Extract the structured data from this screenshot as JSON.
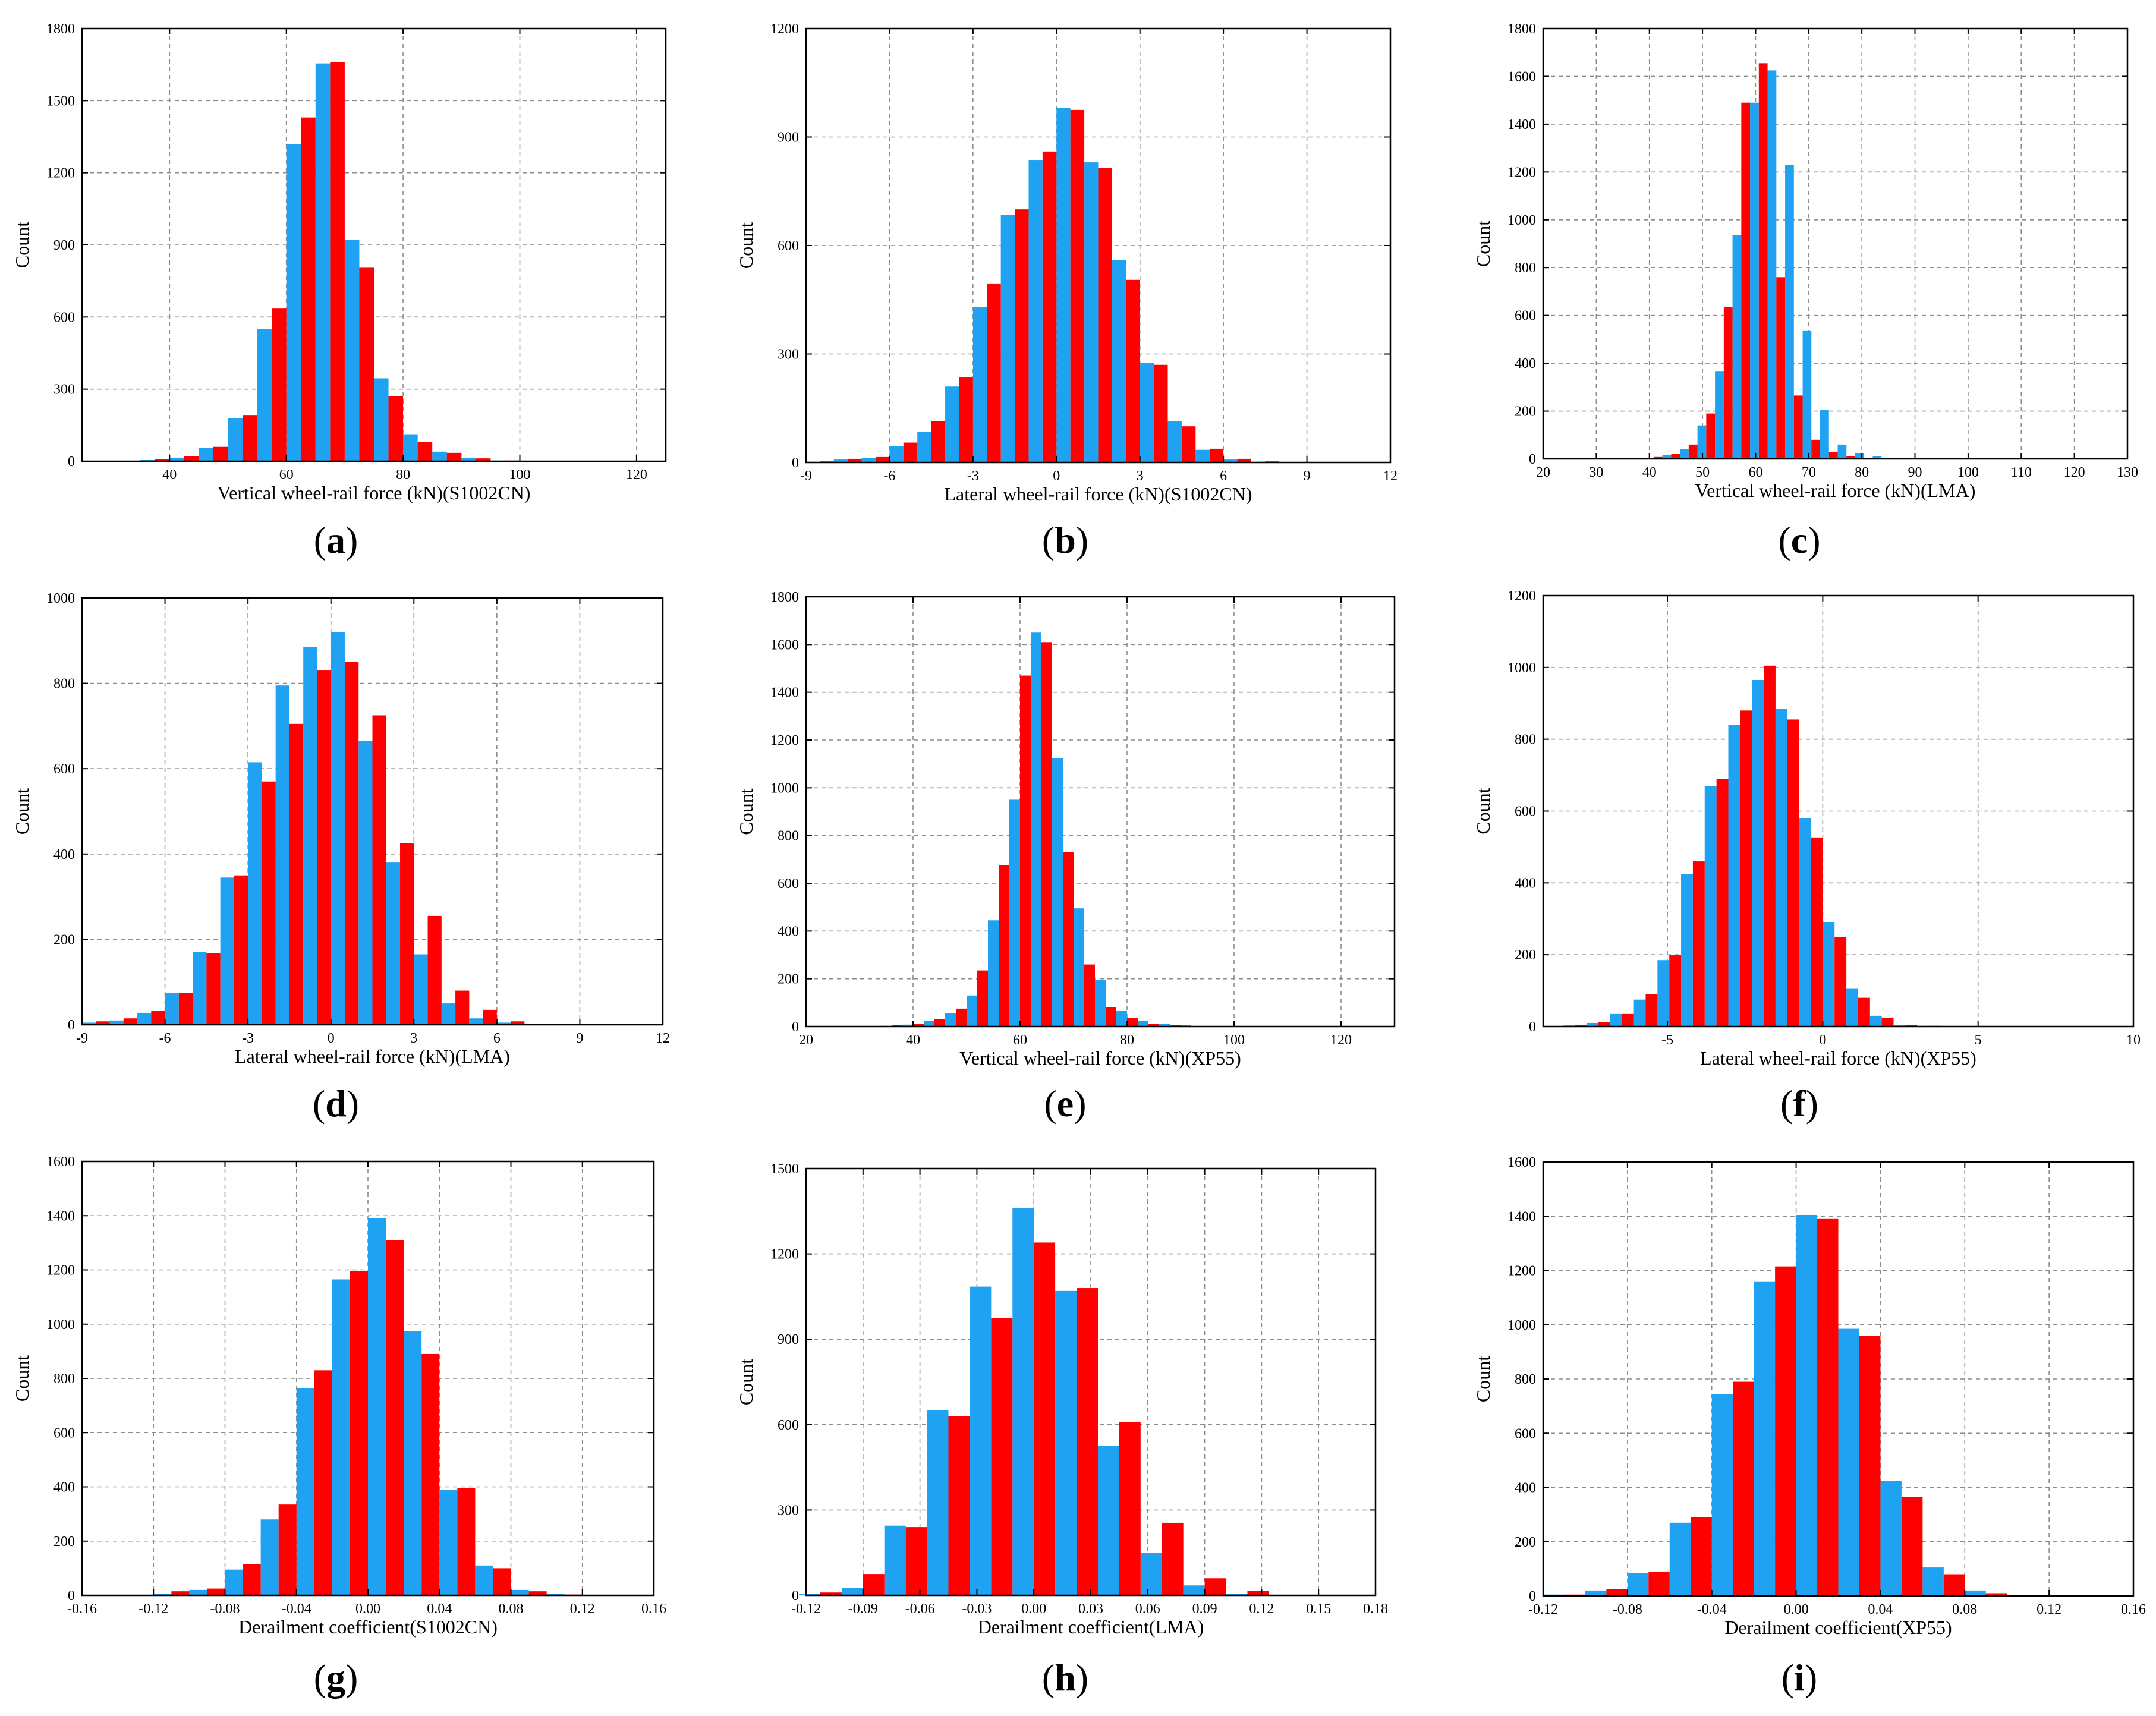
{
  "colors": {
    "series_a": "#1fa2f2",
    "series_b": "#ff0000"
  },
  "chart_data": [
    {
      "id": "a",
      "panel_label": "a",
      "type": "bar",
      "xlabel": "Vertical wheel-rail force (kN)(S1002CN)",
      "ylabel": "Count",
      "xlim": [
        25,
        125
      ],
      "ylim": [
        0,
        1800
      ],
      "xticks": [
        40,
        60,
        80,
        100,
        120
      ],
      "yticks": [
        0,
        300,
        600,
        900,
        1200,
        1500,
        1800
      ],
      "x_grid": [
        40,
        60,
        80,
        100,
        120
      ],
      "bin_width": 5,
      "bin_centers": [
        32.5,
        37.5,
        42.5,
        47.5,
        52.5,
        57.5,
        62.5,
        67.5,
        72.5,
        77.5,
        82.5,
        87.5,
        92.5,
        97.5,
        102.5
      ],
      "series": [
        {
          "name": "series_a",
          "values": [
            2,
            5,
            15,
            55,
            180,
            550,
            1320,
            1655,
            920,
            345,
            110,
            40,
            15,
            3,
            1
          ]
        },
        {
          "name": "series_b",
          "values": [
            2,
            8,
            20,
            60,
            190,
            635,
            1430,
            1660,
            805,
            270,
            80,
            35,
            12,
            3,
            1
          ]
        }
      ]
    },
    {
      "id": "b",
      "panel_label": "b",
      "type": "bar",
      "xlabel": "Lateral wheel-rail force (kN)(S1002CN)",
      "ylabel": "Count",
      "xlim": [
        -9,
        12
      ],
      "ylim": [
        0,
        1200
      ],
      "xticks": [
        -9,
        -6,
        -3,
        0,
        3,
        6,
        9,
        12
      ],
      "yticks": [
        0,
        300,
        600,
        900,
        1200
      ],
      "x_grid": [
        -6,
        -3,
        0,
        3,
        6,
        9
      ],
      "bin_width": 1,
      "bin_centers": [
        -8.5,
        -7.5,
        -6.5,
        -5.5,
        -4.5,
        -3.5,
        -2.5,
        -1.5,
        -0.5,
        0.5,
        1.5,
        2.5,
        3.5,
        4.5,
        5.5,
        6.5,
        7.5,
        8.5,
        9.5
      ],
      "series": [
        {
          "name": "series_a",
          "values": [
            2,
            8,
            12,
            45,
            85,
            210,
            430,
            685,
            835,
            980,
            830,
            560,
            275,
            115,
            35,
            8,
            2,
            1,
            1
          ]
        },
        {
          "name": "series_b",
          "values": [
            3,
            10,
            15,
            55,
            115,
            235,
            495,
            700,
            860,
            975,
            815,
            505,
            270,
            100,
            38,
            10,
            3,
            1,
            0
          ]
        }
      ]
    },
    {
      "id": "c",
      "panel_label": "c",
      "type": "bar",
      "xlabel": "Vertical wheel-rail force (kN)(LMA)",
      "ylabel": "Count",
      "xlim": [
        20,
        130
      ],
      "ylim": [
        0,
        1800
      ],
      "xticks": [
        20,
        30,
        40,
        50,
        60,
        70,
        80,
        90,
        100,
        110,
        120,
        130
      ],
      "yticks": [
        0,
        200,
        400,
        600,
        800,
        1000,
        1200,
        1400,
        1600,
        1800
      ],
      "x_grid": [
        30,
        40,
        50,
        60,
        70,
        80,
        90,
        100,
        110,
        120
      ],
      "bin_width": 3.3,
      "bin_centers": [
        37.5,
        40.8,
        44.1,
        47.4,
        50.7,
        54.0,
        57.3,
        60.6,
        63.9,
        67.2,
        70.5,
        73.8,
        77.1,
        80.4,
        83.7,
        87.0,
        90.3,
        93.6,
        96.9,
        100.2
      ],
      "series": [
        {
          "name": "series_a",
          "values": [
            2,
            5,
            15,
            40,
            140,
            365,
            935,
            1490,
            1625,
            1230,
            535,
            205,
            60,
            25,
            10,
            5,
            2,
            1,
            1,
            0
          ]
        },
        {
          "name": "series_b",
          "values": [
            3,
            8,
            20,
            60,
            190,
            635,
            1490,
            1655,
            760,
            265,
            80,
            30,
            12,
            5,
            2,
            1,
            1,
            0,
            0,
            0
          ]
        }
      ]
    },
    {
      "id": "d",
      "panel_label": "d",
      "type": "bar",
      "xlabel": "Lateral wheel-rail force (kN)(LMA)",
      "ylabel": "Count",
      "xlim": [
        -9,
        12
      ],
      "ylim": [
        0,
        1000
      ],
      "xticks": [
        -9,
        -6,
        -3,
        0,
        3,
        6,
        9,
        12
      ],
      "yticks": [
        0,
        200,
        400,
        600,
        800,
        1000
      ],
      "x_grid": [
        -6,
        -3,
        0,
        3,
        6,
        9
      ],
      "bin_width": 1,
      "bin_centers": [
        -8.5,
        -7.5,
        -6.5,
        -5.5,
        -4.5,
        -3.5,
        -2.5,
        -1.5,
        -0.5,
        0.5,
        1.5,
        2.5,
        3.5,
        4.5,
        5.5,
        6.5,
        7.5,
        8.5,
        9.5
      ],
      "series": [
        {
          "name": "series_a",
          "values": [
            5,
            10,
            28,
            75,
            170,
            345,
            615,
            795,
            885,
            920,
            665,
            380,
            165,
            50,
            15,
            5,
            2,
            1,
            0
          ]
        },
        {
          "name": "series_b",
          "values": [
            8,
            15,
            32,
            75,
            168,
            350,
            570,
            705,
            830,
            850,
            725,
            425,
            255,
            80,
            35,
            8,
            2,
            1,
            0
          ]
        }
      ]
    },
    {
      "id": "e",
      "panel_label": "e",
      "type": "bar",
      "xlabel": "Vertical wheel-rail force (kN)(XP55)",
      "ylabel": "Count",
      "xlim": [
        20,
        130
      ],
      "ylim": [
        0,
        1800
      ],
      "xticks": [
        20,
        40,
        60,
        80,
        100,
        120
      ],
      "yticks": [
        0,
        200,
        400,
        600,
        800,
        1000,
        1200,
        1400,
        1600,
        1800
      ],
      "x_grid": [
        40,
        60,
        80,
        100,
        120
      ],
      "bin_width": 4,
      "bin_centers": [
        36,
        40,
        44,
        48,
        52,
        56,
        60,
        64,
        68,
        72,
        76,
        80,
        84,
        88,
        92,
        96,
        100,
        104
      ],
      "series": [
        {
          "name": "series_a",
          "values": [
            3,
            8,
            25,
            55,
            130,
            445,
            950,
            1650,
            1125,
            495,
            195,
            65,
            25,
            10,
            5,
            2,
            1,
            0
          ]
        },
        {
          "name": "series_b",
          "values": [
            5,
            12,
            30,
            75,
            235,
            675,
            1470,
            1610,
            730,
            260,
            80,
            35,
            12,
            5,
            2,
            1,
            0,
            0
          ]
        }
      ]
    },
    {
      "id": "f",
      "panel_label": "f",
      "type": "bar",
      "xlabel": "Lateral wheel-rail force (kN)(XP55)",
      "ylabel": "Count",
      "xlim": [
        -9,
        10
      ],
      "ylim": [
        0,
        1200
      ],
      "xticks": [
        -5,
        0,
        5,
        10
      ],
      "yticks": [
        0,
        200,
        400,
        600,
        800,
        1000,
        1200
      ],
      "x_grid": [
        -5,
        0,
        5
      ],
      "bin_width": 0.76,
      "bin_centers": [
        -7.98,
        -7.22,
        -6.46,
        -5.7,
        -4.94,
        -4.18,
        -3.42,
        -2.66,
        -1.9,
        -1.14,
        -0.38,
        0.38,
        1.14,
        1.9,
        2.66,
        3.42,
        4.18,
        4.94,
        5.7,
        6.46
      ],
      "series": [
        {
          "name": "series_a",
          "values": [
            3,
            10,
            35,
            75,
            185,
            425,
            670,
            840,
            965,
            885,
            580,
            290,
            105,
            30,
            5,
            2,
            1,
            0,
            0,
            0
          ]
        },
        {
          "name": "series_b",
          "values": [
            5,
            12,
            35,
            90,
            200,
            460,
            690,
            880,
            1005,
            855,
            525,
            250,
            80,
            25,
            5,
            2,
            1,
            0,
            0,
            0
          ]
        }
      ]
    },
    {
      "id": "g",
      "panel_label": "g",
      "type": "bar",
      "xlabel": "Derailment coefficient(S1002CN)",
      "ylabel": "Count",
      "xlim": [
        -0.16,
        0.16
      ],
      "ylim": [
        0,
        1600
      ],
      "xticks": [
        -0.16,
        -0.12,
        -0.08,
        -0.04,
        0.0,
        0.04,
        0.08,
        0.12,
        0.16
      ],
      "yticks": [
        0,
        200,
        400,
        600,
        800,
        1000,
        1200,
        1400,
        1600
      ],
      "xtick_labels": [
        "-0.16",
        "-0.12",
        "-0.08",
        "-0.04",
        "0.00",
        "0.04",
        "0.08",
        "0.12",
        "0.16"
      ],
      "x_grid": [
        -0.12,
        -0.08,
        -0.04,
        0.0,
        0.04,
        0.08,
        0.12
      ],
      "bin_width": 0.02,
      "bin_centers": [
        -0.11,
        -0.09,
        -0.07,
        -0.05,
        -0.03,
        -0.01,
        0.01,
        0.03,
        0.05,
        0.07,
        0.09,
        0.11
      ],
      "series": [
        {
          "name": "series_a",
          "values": [
            5,
            20,
            95,
            280,
            765,
            1165,
            1390,
            975,
            390,
            110,
            20,
            5
          ]
        },
        {
          "name": "series_b",
          "values": [
            15,
            25,
            115,
            335,
            830,
            1195,
            1310,
            890,
            395,
            100,
            15,
            3
          ]
        }
      ]
    },
    {
      "id": "h",
      "panel_label": "h",
      "type": "bar",
      "xlabel": "Derailment coefficient(LMA)",
      "ylabel": "Count",
      "xlim": [
        -0.12,
        0.18
      ],
      "ylim": [
        0,
        1500
      ],
      "xticks": [
        -0.12,
        -0.09,
        -0.06,
        -0.03,
        0.0,
        0.03,
        0.06,
        0.09,
        0.12,
        0.15,
        0.18
      ],
      "yticks": [
        0,
        300,
        600,
        900,
        1200,
        1500
      ],
      "xtick_labels": [
        "-0.12",
        "-0.09",
        "-0.06",
        "-0.03",
        "0.00",
        "0.03",
        "0.06",
        "0.09",
        "0.12",
        "0.15",
        "0.18"
      ],
      "x_grid": [
        -0.09,
        -0.06,
        -0.03,
        0.0,
        0.03,
        0.06,
        0.09,
        0.12,
        0.15
      ],
      "bin_width": 0.0225,
      "bin_centers": [
        -0.1125,
        -0.09,
        -0.0675,
        -0.045,
        -0.0225,
        0.0,
        0.0225,
        0.045,
        0.0675,
        0.09,
        0.1125
      ],
      "series": [
        {
          "name": "series_a",
          "values": [
            5,
            25,
            245,
            650,
            1085,
            1360,
            1070,
            525,
            150,
            35,
            5
          ]
        },
        {
          "name": "series_b",
          "values": [
            10,
            75,
            240,
            630,
            975,
            1240,
            1080,
            610,
            255,
            60,
            15
          ]
        }
      ]
    },
    {
      "id": "i",
      "panel_label": "i",
      "type": "bar",
      "xlabel": "Derailment coefficient(XP55)",
      "ylabel": "Count",
      "xlim": [
        -0.12,
        0.16
      ],
      "ylim": [
        0,
        1600
      ],
      "xticks": [
        -0.12,
        -0.08,
        -0.04,
        0.0,
        0.04,
        0.08,
        0.12,
        0.16
      ],
      "yticks": [
        0,
        200,
        400,
        600,
        800,
        1000,
        1200,
        1400,
        1600
      ],
      "xtick_labels": [
        "-0.12",
        "-0.08",
        "-0.04",
        "0.00",
        "0.04",
        "0.08",
        "0.12",
        "0.16"
      ],
      "x_grid": [
        -0.08,
        -0.04,
        0.0,
        0.04,
        0.08,
        0.12
      ],
      "bin_width": 0.02,
      "bin_centers": [
        -0.11,
        -0.09,
        -0.07,
        -0.05,
        -0.03,
        -0.01,
        0.01,
        0.03,
        0.05,
        0.07,
        0.09
      ],
      "series": [
        {
          "name": "series_a",
          "values": [
            5,
            20,
            85,
            270,
            745,
            1160,
            1405,
            985,
            425,
            105,
            20
          ]
        },
        {
          "name": "series_b",
          "values": [
            5,
            25,
            90,
            290,
            790,
            1215,
            1390,
            960,
            365,
            80,
            10
          ]
        }
      ]
    }
  ]
}
